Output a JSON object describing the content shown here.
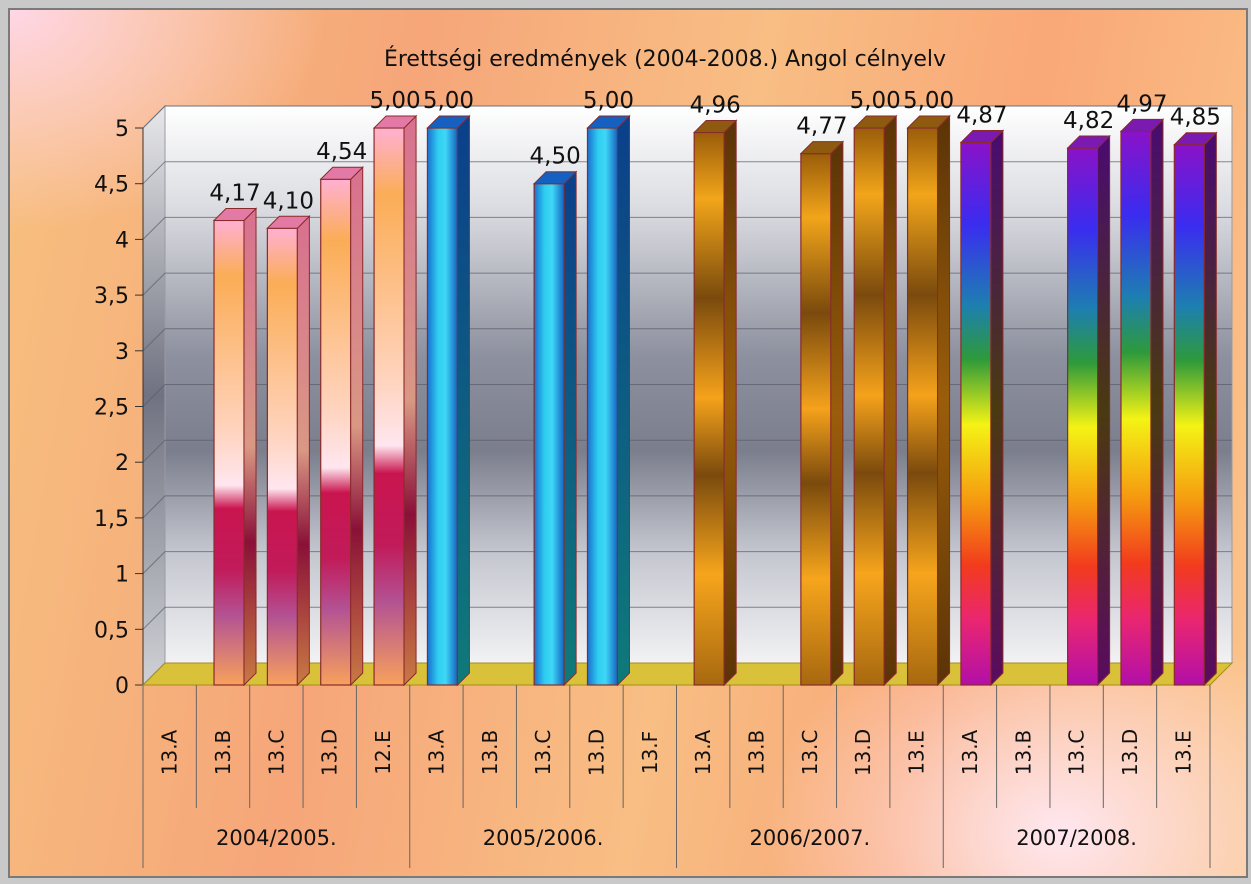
{
  "chart_data": {
    "type": "bar",
    "title": "Érettségi eredmények  (2004-2008.) Angol célnyelv",
    "ylim": [
      0,
      5
    ],
    "yticks": [
      "0",
      "0,5",
      "1",
      "1,5",
      "2",
      "2,5",
      "3",
      "3,5",
      "4",
      "4,5",
      "5"
    ],
    "grid": true,
    "groups": [
      {
        "name": "2004/2005.",
        "style": "pink",
        "categories": [
          "13.A",
          "13.B",
          "13.C",
          "13.D",
          "12.E"
        ],
        "values": [
          null,
          4.17,
          4.1,
          4.54,
          5.0
        ],
        "labels": [
          "",
          "4,17",
          "4,10",
          "4,54",
          "5,00"
        ]
      },
      {
        "name": "2005/2006.",
        "style": "blue",
        "categories": [
          "13.A",
          "13.B",
          "13.C",
          "13.D",
          "13.F"
        ],
        "values": [
          5.0,
          null,
          4.5,
          5.0,
          null
        ],
        "labels": [
          "5,00",
          "",
          "4,50",
          "5,00",
          ""
        ]
      },
      {
        "name": "2006/2007.",
        "style": "bronze",
        "categories": [
          "13.A",
          "13.B",
          "13.C",
          "13.D",
          "13.E"
        ],
        "values": [
          4.96,
          null,
          4.77,
          5.0,
          5.0
        ],
        "labels": [
          "4,96",
          "",
          "4,77",
          "5,00",
          "5,00"
        ]
      },
      {
        "name": "2007/2008.",
        "style": "rainbow",
        "categories": [
          "13.A",
          "13.B",
          "13.C",
          "13.D",
          "13.E"
        ],
        "values": [
          4.87,
          null,
          4.82,
          4.97,
          4.85
        ],
        "labels": [
          "4,87",
          "",
          "4,82",
          "4,97",
          "4,85"
        ]
      }
    ]
  },
  "colors": {
    "floor": "#d9c23a",
    "bar_outline": "#8a2b2b",
    "axis": "#666666"
  }
}
